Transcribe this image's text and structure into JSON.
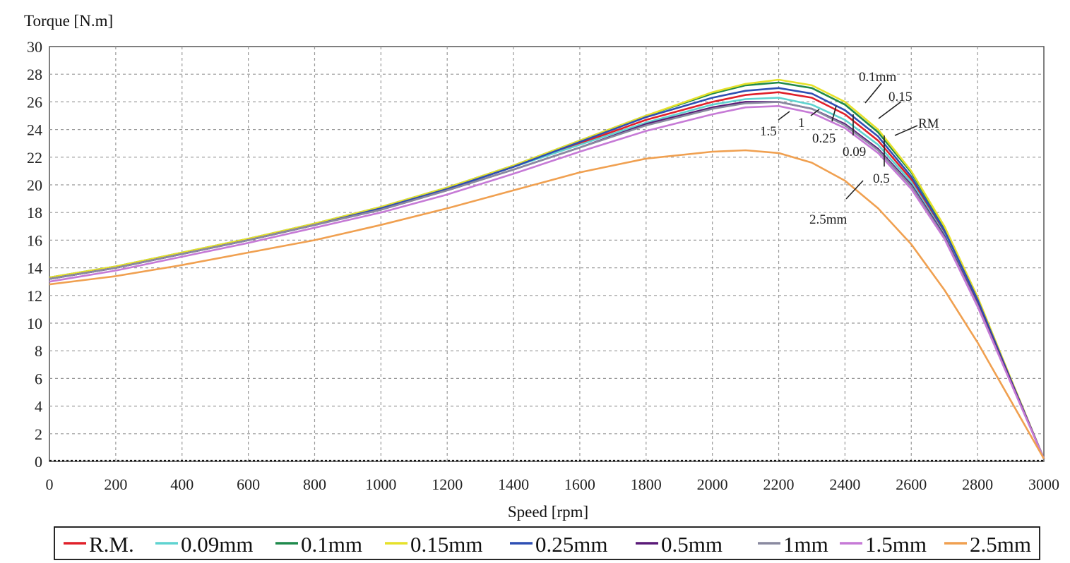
{
  "chart_data": {
    "type": "line",
    "ylabel": "Torque [N.m]",
    "xlabel": "Speed [rpm]",
    "xlim": [
      0,
      3000
    ],
    "ylim": [
      0,
      30
    ],
    "xticks": [
      0,
      200,
      400,
      600,
      800,
      1000,
      1200,
      1400,
      1600,
      1800,
      2000,
      2200,
      2400,
      2600,
      2800,
      3000
    ],
    "yticks": [
      0,
      2,
      4,
      6,
      8,
      10,
      12,
      14,
      16,
      18,
      20,
      22,
      24,
      26,
      28,
      30
    ],
    "grid": true,
    "legend_position": "bottom",
    "x": [
      0,
      200,
      400,
      600,
      800,
      1000,
      1200,
      1400,
      1600,
      1800,
      2000,
      2100,
      2200,
      2300,
      2400,
      2500,
      2600,
      2700,
      2800,
      2900,
      3000
    ],
    "series": [
      {
        "name": "R.M.",
        "color": "#e0202a",
        "values": [
          13.2,
          14.0,
          15.0,
          16.0,
          17.1,
          18.3,
          19.7,
          21.3,
          23.0,
          24.7,
          26.0,
          26.5,
          26.7,
          26.3,
          25.1,
          23.2,
          20.4,
          16.5,
          11.5,
          5.8,
          0.2
        ]
      },
      {
        "name": "0.09mm",
        "color": "#5fd3d0",
        "values": [
          13.2,
          14.0,
          15.0,
          16.0,
          17.1,
          18.3,
          19.7,
          21.3,
          22.9,
          24.5,
          25.8,
          26.2,
          26.3,
          25.8,
          24.7,
          22.9,
          20.2,
          16.4,
          11.4,
          5.8,
          0.2
        ]
      },
      {
        "name": "0.1mm",
        "color": "#1f8a4c",
        "values": [
          13.3,
          14.1,
          15.1,
          16.1,
          17.2,
          18.4,
          19.8,
          21.4,
          23.2,
          25.0,
          26.6,
          27.2,
          27.4,
          27.0,
          25.8,
          23.8,
          20.9,
          16.9,
          11.8,
          5.9,
          0.2
        ]
      },
      {
        "name": "0.15mm",
        "color": "#e6e12a",
        "values": [
          13.3,
          14.1,
          15.1,
          16.1,
          17.2,
          18.4,
          19.8,
          21.4,
          23.2,
          25.0,
          26.7,
          27.3,
          27.6,
          27.2,
          26.0,
          24.0,
          21.0,
          17.0,
          11.9,
          6.0,
          0.2
        ]
      },
      {
        "name": "0.25mm",
        "color": "#2e4fb3",
        "values": [
          13.2,
          14.0,
          15.0,
          16.0,
          17.1,
          18.3,
          19.7,
          21.3,
          23.1,
          24.9,
          26.3,
          26.8,
          27.0,
          26.6,
          25.4,
          23.5,
          20.6,
          16.7,
          11.7,
          5.9,
          0.2
        ]
      },
      {
        "name": "0.5mm",
        "color": "#5a1a78",
        "values": [
          13.2,
          14.0,
          15.0,
          16.0,
          17.1,
          18.2,
          19.6,
          21.1,
          22.7,
          24.4,
          25.6,
          26.0,
          26.0,
          25.5,
          24.4,
          22.6,
          20.0,
          16.3,
          11.4,
          5.8,
          0.2
        ]
      },
      {
        "name": "1mm",
        "color": "#8a8aa0",
        "values": [
          13.2,
          14.0,
          15.0,
          16.0,
          17.1,
          18.2,
          19.6,
          21.1,
          22.7,
          24.3,
          25.5,
          25.9,
          26.0,
          25.5,
          24.3,
          22.5,
          19.9,
          16.2,
          11.3,
          5.7,
          0.2
        ]
      },
      {
        "name": "1.5mm",
        "color": "#c67ad6",
        "values": [
          13.0,
          13.8,
          14.8,
          15.8,
          16.9,
          18.0,
          19.3,
          20.8,
          22.4,
          23.9,
          25.1,
          25.6,
          25.7,
          25.2,
          24.1,
          22.3,
          19.7,
          16.1,
          11.2,
          5.7,
          0.2
        ]
      },
      {
        "name": "2.5mm",
        "color": "#f0a050",
        "values": [
          12.8,
          13.4,
          14.2,
          15.1,
          16.0,
          17.1,
          18.3,
          19.6,
          20.9,
          21.9,
          22.4,
          22.5,
          22.3,
          21.6,
          20.3,
          18.3,
          15.7,
          12.4,
          8.6,
          4.4,
          0.2
        ]
      }
    ],
    "annotations": [
      "0.1mm",
      "0.15",
      "RM",
      "1.5",
      "1",
      "0.25",
      "0.09",
      "0.5",
      "2.5mm"
    ]
  }
}
